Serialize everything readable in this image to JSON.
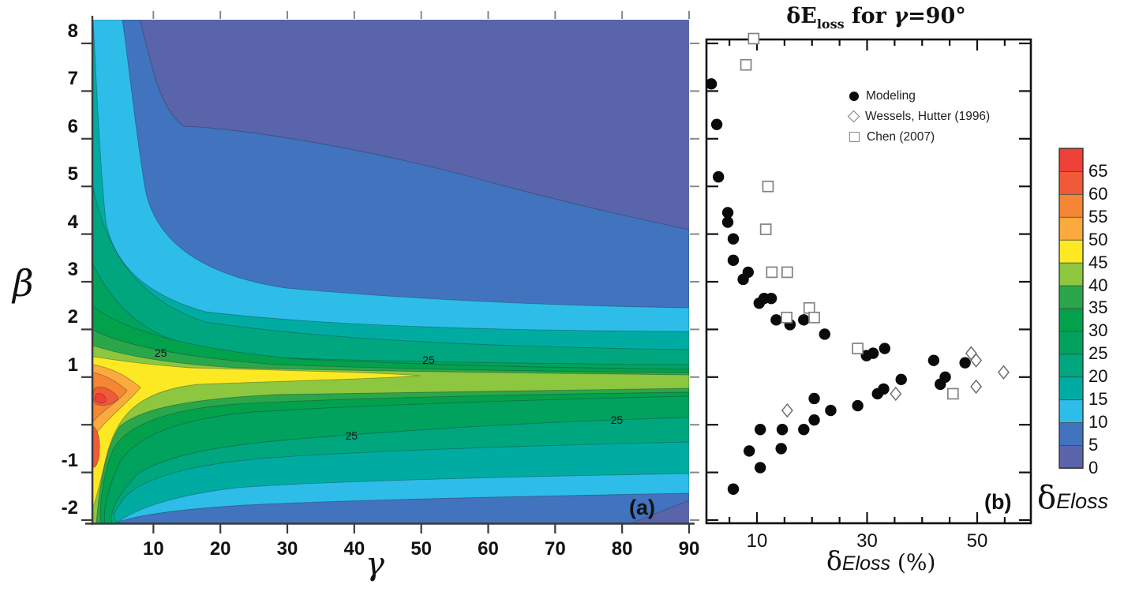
{
  "figure": {
    "panel_a": {
      "corner_label": "(a)",
      "x_axis": {
        "label": "γ",
        "ticks": [
          "10",
          "20",
          "30",
          "40",
          "50",
          "60",
          "70",
          "80",
          "90"
        ]
      },
      "y_axis": {
        "label": "β",
        "ticks": [
          "8",
          "7",
          "6",
          "5",
          "4",
          "3",
          "2",
          "1",
          "-1",
          "-2"
        ]
      }
    },
    "panel_b": {
      "corner_label": "(b)",
      "title": {
        "t1": "δE",
        "sub": "loss",
        "t2": " for ",
        "gamma": "γ",
        "t3": "=90°"
      },
      "x_axis": {
        "delta": "δ",
        "italic": "Eloss",
        "units": " (%)",
        "ticks": [
          "10",
          "30",
          "50"
        ]
      }
    },
    "colorbar": {
      "ticks": [
        "0",
        "5",
        "10",
        "15",
        "20",
        "25",
        "30",
        "35",
        "40",
        "45",
        "50",
        "55",
        "60",
        "65"
      ],
      "delta": "δ",
      "italic": "Eloss",
      "colors": [
        "#5a64ab",
        "#4173bf",
        "#2ebde9",
        "#00aca2",
        "#00a77e",
        "#00a25e",
        "#04a14d",
        "#2aa74a",
        "#8dc63f",
        "#fde923",
        "#fbaa3d",
        "#f58634",
        "#f05a38",
        "#ee4036"
      ]
    }
  },
  "chart_data": [
    {
      "type": "heatmap",
      "subtype": "filled-contour",
      "xlabel": "γ",
      "ylabel": "β",
      "x_range": [
        1,
        90
      ],
      "y_range": [
        -2,
        8.5
      ],
      "levels": [
        0,
        5,
        10,
        15,
        20,
        25,
        30,
        35,
        40,
        45,
        50,
        55,
        60,
        65,
        70
      ],
      "colorbar_label": "δEloss",
      "description": "delta-Eloss (%) contour map; hot ridge (45-70%) near beta=1 at small gamma, values decay toward 0-5% at large beta and large gamma",
      "contour_line_labels": [
        {
          "text": "25",
          "x": 11.1,
          "y": 1.49
        },
        {
          "text": "25",
          "x": 51.1,
          "y": 1.34
        },
        {
          "text": "25",
          "x": 39.6,
          "y": -0.24
        },
        {
          "text": "25",
          "x": 79.2,
          "y": 0.09
        }
      ]
    },
    {
      "type": "scatter",
      "title": "δEloss for γ=90°",
      "xlabel": "δEloss (%)",
      "ylabel": "β",
      "xlim": [
        0,
        60
      ],
      "ylim": [
        -2.1,
        8.1
      ],
      "x_ticks": [
        10,
        30,
        50
      ],
      "legend_position": "top-left-inside",
      "series": [
        {
          "name": "Modeling",
          "marker": "filled-circle",
          "points": [
            [
              1.7,
              7.15
            ],
            [
              2.7,
              6.3
            ],
            [
              3.0,
              5.2
            ],
            [
              4.7,
              4.45
            ],
            [
              4.7,
              4.25
            ],
            [
              5.7,
              3.9
            ],
            [
              5.7,
              3.45
            ],
            [
              7.5,
              3.05
            ],
            [
              8.4,
              3.2
            ],
            [
              10.4,
              2.55
            ],
            [
              11.3,
              2.65
            ],
            [
              12.6,
              2.65
            ],
            [
              13.5,
              2.2
            ],
            [
              16.0,
              2.1
            ],
            [
              18.5,
              2.2
            ],
            [
              22.3,
              1.9
            ],
            [
              29.9,
              1.45
            ],
            [
              31.1,
              1.5
            ],
            [
              33.2,
              1.6
            ],
            [
              36.2,
              0.95
            ],
            [
              42.1,
              1.35
            ],
            [
              43.3,
              0.85
            ],
            [
              44.2,
              1.0
            ],
            [
              47.8,
              1.3
            ],
            [
              5.7,
              -1.35
            ],
            [
              8.6,
              -0.55
            ],
            [
              10.6,
              -0.9
            ],
            [
              10.6,
              -0.1
            ],
            [
              14.4,
              -0.5
            ],
            [
              14.6,
              -0.1
            ],
            [
              18.5,
              -0.1
            ],
            [
              20.4,
              0.1
            ],
            [
              20.4,
              0.55
            ],
            [
              23.4,
              0.3
            ],
            [
              28.3,
              0.4
            ],
            [
              31.9,
              0.65
            ],
            [
              33.0,
              0.75
            ]
          ]
        },
        {
          "name": "Wessels, Hutter (1996)",
          "marker": "open-diamond",
          "points": [
            [
              15.5,
              0.3
            ],
            [
              35.2,
              0.65
            ],
            [
              48.9,
              1.5
            ],
            [
              49.8,
              1.35
            ],
            [
              54.8,
              1.1
            ],
            [
              49.8,
              0.8
            ]
          ]
        },
        {
          "name": "Chen (2007)",
          "marker": "open-square",
          "points": [
            [
              9.4,
              8.1
            ],
            [
              8.0,
              7.55
            ],
            [
              12.0,
              5.0
            ],
            [
              11.6,
              4.1
            ],
            [
              12.7,
              3.2
            ],
            [
              15.5,
              3.2
            ],
            [
              15.4,
              2.25
            ],
            [
              19.5,
              2.45
            ],
            [
              20.4,
              2.25
            ],
            [
              28.3,
              1.6
            ],
            [
              45.6,
              0.65
            ]
          ]
        }
      ]
    }
  ]
}
